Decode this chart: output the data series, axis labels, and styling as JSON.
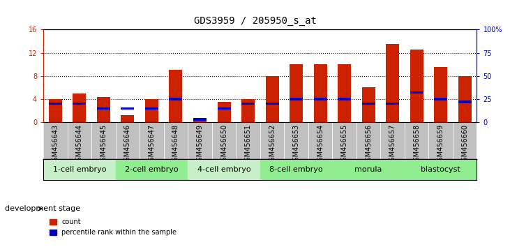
{
  "title": "GDS3959 / 205950_s_at",
  "samples": [
    "GSM456643",
    "GSM456644",
    "GSM456645",
    "GSM456646",
    "GSM456647",
    "GSM456648",
    "GSM456649",
    "GSM456650",
    "GSM456651",
    "GSM456652",
    "GSM456653",
    "GSM456654",
    "GSM456655",
    "GSM456656",
    "GSM456657",
    "GSM456658",
    "GSM456659",
    "GSM456660"
  ],
  "counts": [
    4.0,
    5.0,
    4.3,
    1.2,
    4.0,
    9.0,
    0.6,
    3.5,
    4.0,
    8.0,
    10.0,
    10.0,
    10.0,
    6.0,
    13.5,
    12.5,
    9.5,
    8.0
  ],
  "percentiles": [
    20,
    20,
    15,
    15,
    15,
    25,
    3,
    15,
    20,
    20,
    25,
    25,
    25,
    20,
    20,
    32,
    25,
    22
  ],
  "ylim_left": [
    0,
    16
  ],
  "ylim_right": [
    0,
    100
  ],
  "yticks_left": [
    0,
    4,
    8,
    12,
    16
  ],
  "yticks_right": [
    0,
    25,
    50,
    75,
    100
  ],
  "yticklabels_right": [
    "0",
    "25",
    "50",
    "75",
    "100%"
  ],
  "bar_color": "#CC2200",
  "percentile_color": "#0000CC",
  "bar_width": 0.55,
  "stages": [
    {
      "label": "1-cell embryo",
      "start": 0,
      "end": 3
    },
    {
      "label": "2-cell embryo",
      "start": 3,
      "end": 6
    },
    {
      "label": "4-cell embryo",
      "start": 6,
      "end": 9
    },
    {
      "label": "8-cell embryo",
      "start": 9,
      "end": 12
    },
    {
      "label": "morula",
      "start": 12,
      "end": 15
    },
    {
      "label": "blastocyst",
      "start": 15,
      "end": 18
    }
  ],
  "stage_colors": [
    "#C8F0C8",
    "#90EE90",
    "#C8F0C8",
    "#90EE90",
    "#90EE90",
    "#90EE90"
  ],
  "development_stage_label": "development stage",
  "legend_count": "count",
  "legend_percentile": "percentile rank within the sample",
  "background_color": "#FFFFFF",
  "plot_bg_color": "#FFFFFF",
  "tick_bg_color": "#C0C0C0",
  "axis_label_color_left": "#CC2200",
  "axis_label_color_right": "#0000CC",
  "title_fontsize": 10,
  "tick_fontsize": 7,
  "stage_fontsize": 8,
  "grid_dotted_at": [
    4,
    8,
    12
  ]
}
